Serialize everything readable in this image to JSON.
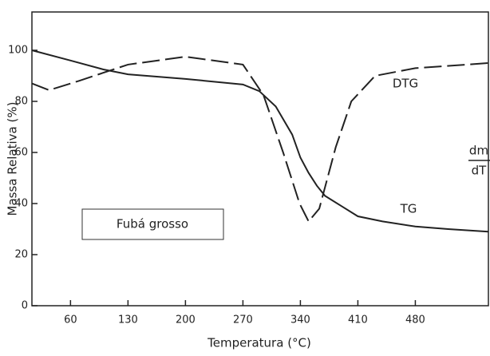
{
  "chart_data": {
    "type": "line",
    "xlabel": "Temperatura (°C)",
    "ylabel": "Massa Relativa (%)",
    "y2label_numerator": "dm",
    "y2label_denominator": "dT",
    "box_label": "Fubá grosso",
    "xlim": [
      13,
      569
    ],
    "xticks": [
      60,
      130,
      200,
      270,
      340,
      410,
      480
    ],
    "ylim": [
      0,
      115
    ],
    "yticks": [
      0,
      20,
      40,
      60,
      80,
      100
    ],
    "series": [
      {
        "name": "TG",
        "color": "#222222",
        "style": "solid",
        "x": [
          13,
          60,
          100,
          130,
          200,
          270,
          290,
          310,
          330,
          340,
          350,
          360,
          370,
          390,
          410,
          440,
          480,
          520,
          569
        ],
        "values": [
          100,
          96,
          92.5,
          90.6,
          88.8,
          86.6,
          84,
          78,
          67,
          58,
          52,
          47,
          43,
          39,
          35,
          33,
          31,
          30,
          29
        ]
      },
      {
        "name": "DTG",
        "color": "#222222",
        "style": "dashed",
        "x": [
          13,
          34,
          70,
          130,
          200,
          270,
          295,
          319,
          339,
          350,
          363,
          383,
          402,
          431,
          480,
          569
        ],
        "values": [
          87,
          84.4,
          88,
          94.4,
          97.5,
          94.4,
          82.5,
          60,
          40,
          33,
          38,
          62,
          80,
          90,
          93,
          95
        ]
      }
    ]
  }
}
